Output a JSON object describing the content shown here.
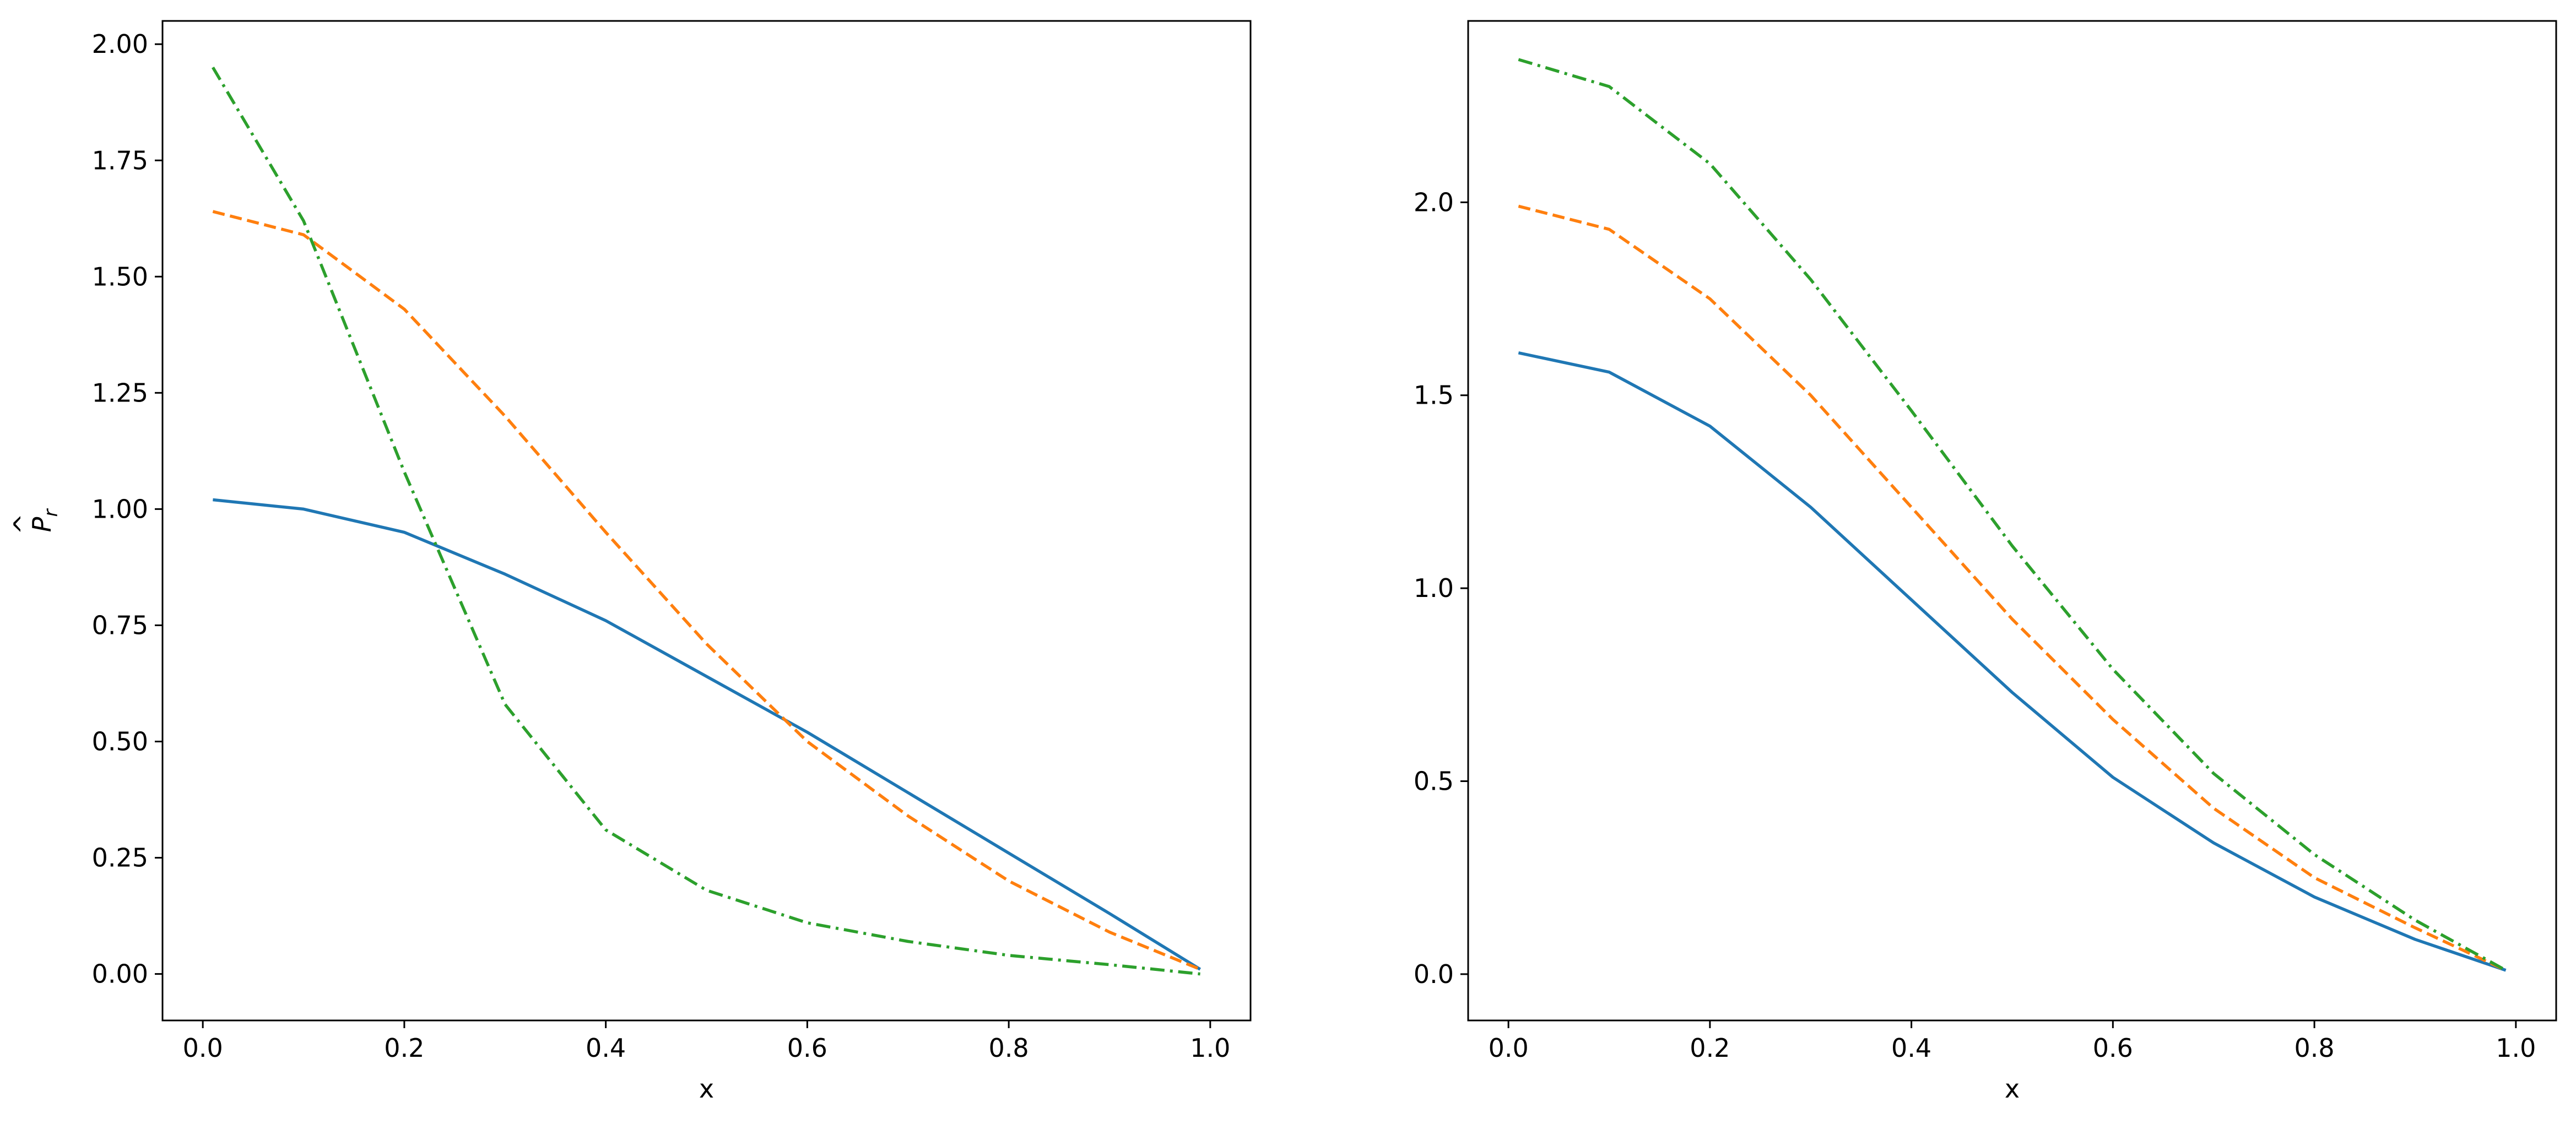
{
  "chart_data": [
    {
      "type": "line",
      "title": "",
      "xlabel": "x",
      "ylabel": "P̂_r",
      "ylabel_display": {
        "base": "P",
        "hat": "^",
        "sub": "r"
      },
      "xlim": [
        -0.04,
        1.04
      ],
      "ylim": [
        -0.1,
        2.05
      ],
      "xticks": [
        0.0,
        0.2,
        0.4,
        0.6,
        0.8,
        1.0
      ],
      "xtick_labels": [
        "0.0",
        "0.2",
        "0.4",
        "0.6",
        "0.8",
        "1.0"
      ],
      "yticks": [
        0.0,
        0.25,
        0.5,
        0.75,
        1.0,
        1.25,
        1.5,
        1.75,
        2.0
      ],
      "ytick_labels": [
        "0.00",
        "0.25",
        "0.50",
        "0.75",
        "1.00",
        "1.25",
        "1.50",
        "1.75",
        "2.00"
      ],
      "grid": false,
      "x": [
        0.01,
        0.1,
        0.2,
        0.3,
        0.4,
        0.5,
        0.6,
        0.7,
        0.8,
        0.9,
        0.99
      ],
      "series": [
        {
          "color": "#1f77b4",
          "dash": "solid",
          "values": [
            1.02,
            1.0,
            0.95,
            0.86,
            0.76,
            0.64,
            0.52,
            0.39,
            0.26,
            0.13,
            0.01
          ]
        },
        {
          "color": "#ff7f0e",
          "dash": "dashed",
          "values": [
            1.64,
            1.59,
            1.43,
            1.2,
            0.95,
            0.71,
            0.5,
            0.34,
            0.2,
            0.09,
            0.01
          ]
        },
        {
          "color": "#2ca02c",
          "dash": "dashdot",
          "values": [
            1.95,
            1.62,
            1.08,
            0.58,
            0.31,
            0.18,
            0.11,
            0.07,
            0.04,
            0.02,
            0.0
          ]
        }
      ]
    },
    {
      "type": "line",
      "title": "",
      "xlabel": "x",
      "ylabel": "",
      "xlim": [
        -0.04,
        1.04
      ],
      "ylim": [
        -0.12,
        2.47
      ],
      "xticks": [
        0.0,
        0.2,
        0.4,
        0.6,
        0.8,
        1.0
      ],
      "xtick_labels": [
        "0.0",
        "0.2",
        "0.4",
        "0.6",
        "0.8",
        "1.0"
      ],
      "yticks": [
        0.0,
        0.5,
        1.0,
        1.5,
        2.0
      ],
      "ytick_labels": [
        "0.0",
        "0.5",
        "1.0",
        "1.5",
        "2.0"
      ],
      "grid": false,
      "x": [
        0.01,
        0.1,
        0.2,
        0.3,
        0.4,
        0.5,
        0.6,
        0.7,
        0.8,
        0.9,
        0.99
      ],
      "series": [
        {
          "color": "#1f77b4",
          "dash": "solid",
          "values": [
            1.61,
            1.56,
            1.42,
            1.21,
            0.97,
            0.73,
            0.51,
            0.34,
            0.2,
            0.09,
            0.01
          ]
        },
        {
          "color": "#ff7f0e",
          "dash": "dashed",
          "values": [
            1.99,
            1.93,
            1.75,
            1.5,
            1.21,
            0.92,
            0.66,
            0.43,
            0.25,
            0.12,
            0.01
          ]
        },
        {
          "color": "#2ca02c",
          "dash": "dashdot",
          "values": [
            2.37,
            2.3,
            2.1,
            1.8,
            1.46,
            1.11,
            0.79,
            0.52,
            0.31,
            0.14,
            0.01
          ]
        }
      ]
    }
  ]
}
